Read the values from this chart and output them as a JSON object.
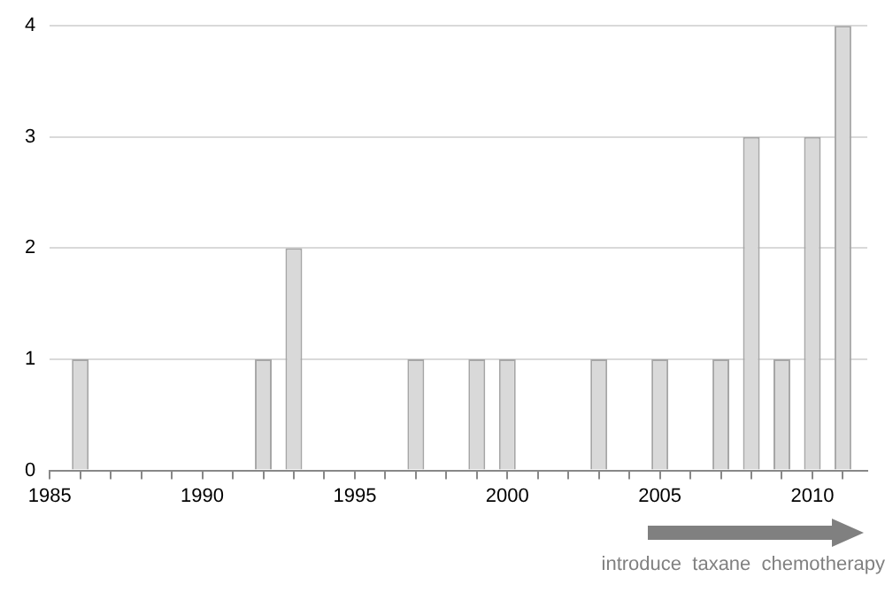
{
  "chart_data": {
    "type": "bar",
    "x": [
      1986,
      1992,
      1993,
      1997,
      1999,
      2000,
      2003,
      2005,
      2007,
      2008,
      2009,
      2010,
      2011
    ],
    "values": [
      1,
      1,
      2,
      1,
      1,
      1,
      1,
      1,
      1,
      3,
      1,
      3,
      4
    ],
    "color": "#d9d9d9",
    "xlim": [
      1985,
      2011.8
    ],
    "xticks": [
      1985,
      {
        "value": 1986,
        "label": null
      },
      {
        "value": 1987,
        "label": null
      },
      {
        "value": 1988,
        "label": null
      },
      {
        "value": 1989,
        "label": null
      },
      1990,
      {
        "value": 1991,
        "label": null
      },
      {
        "value": 1992,
        "label": null
      },
      {
        "value": 1993,
        "label": null
      },
      {
        "value": 1994,
        "label": null
      },
      1995,
      {
        "value": 1996,
        "label": null
      },
      {
        "value": 1997,
        "label": null
      },
      {
        "value": 1998,
        "label": null
      },
      {
        "value": 1999,
        "label": null
      },
      2000,
      {
        "value": 2001,
        "label": null
      },
      {
        "value": 2002,
        "label": null
      },
      {
        "value": 2003,
        "label": null
      },
      {
        "value": 2004,
        "label": null
      },
      2005,
      {
        "value": 2006,
        "label": null
      },
      {
        "value": 2007,
        "label": null
      },
      {
        "value": 2008,
        "label": null
      },
      {
        "value": 2009,
        "label": null
      },
      2010,
      {
        "value": 2011,
        "label": null
      }
    ],
    "ylim": [
      0,
      4
    ],
    "yticks": [
      0,
      1,
      2,
      3,
      4
    ],
    "grid": "y",
    "legend": false,
    "annotations": [
      "introduce  taxane  chemotherapy"
    ]
  }
}
